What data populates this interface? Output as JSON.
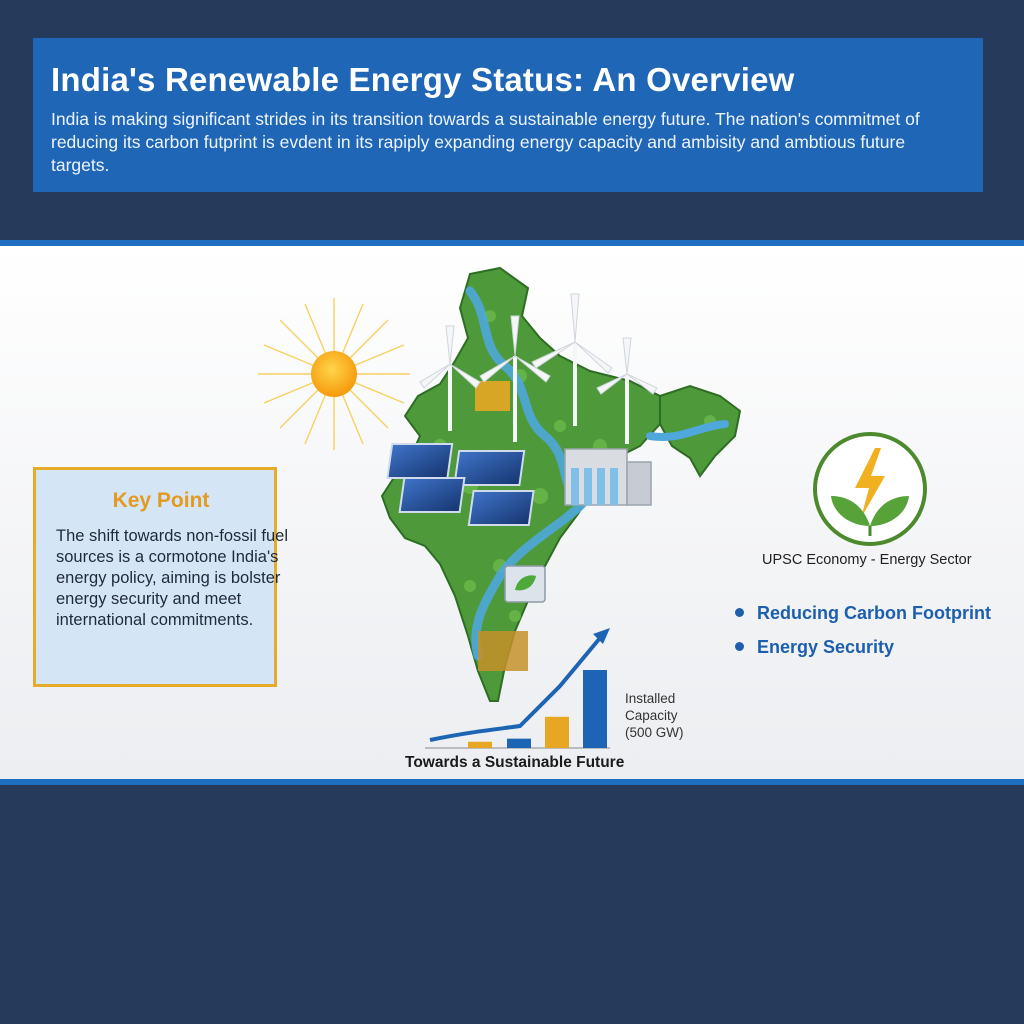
{
  "header": {
    "title": "India's Renewable Energy Status: An Overview",
    "description": "India is making significant strides in its transition towards a sustainable energy future. The nation's commitmet of reducing its carbon futprint is evdent in its rapiply expanding energy capacity and ambisity and ambtious future targets."
  },
  "key_point": {
    "title": "Key Point",
    "body": "The shift towards non-fossil fuel sources is a cormotone India's energy policy, aiming is bolster energy security and meet international commitments."
  },
  "side_panel": {
    "label": "UPSC Economy - Energy Sector",
    "bullets": [
      {
        "text": "Reducing Carbon Footprint"
      },
      {
        "text": "Energy Security"
      }
    ]
  },
  "growth_chart": {
    "caption": "Towards a Sustainable Future",
    "capacity_label": "Installed Capacity (500 GW)",
    "bars": [
      {
        "color": "#e8a723",
        "level": 0.08
      },
      {
        "color": "#1d64b4",
        "level": 0.12
      },
      {
        "color": "#e8a723",
        "level": 0.4
      },
      {
        "color": "#1d64b4",
        "level": 1.0
      }
    ]
  },
  "icons": {
    "sun": "sun-icon",
    "emblem": "leaf-lightning-icon"
  },
  "colors": {
    "header_bg": "#1f66b6",
    "page_bg": "#263b5b",
    "accent_blue": "#1e6fc0",
    "accent_gold": "#e7ab2b"
  }
}
